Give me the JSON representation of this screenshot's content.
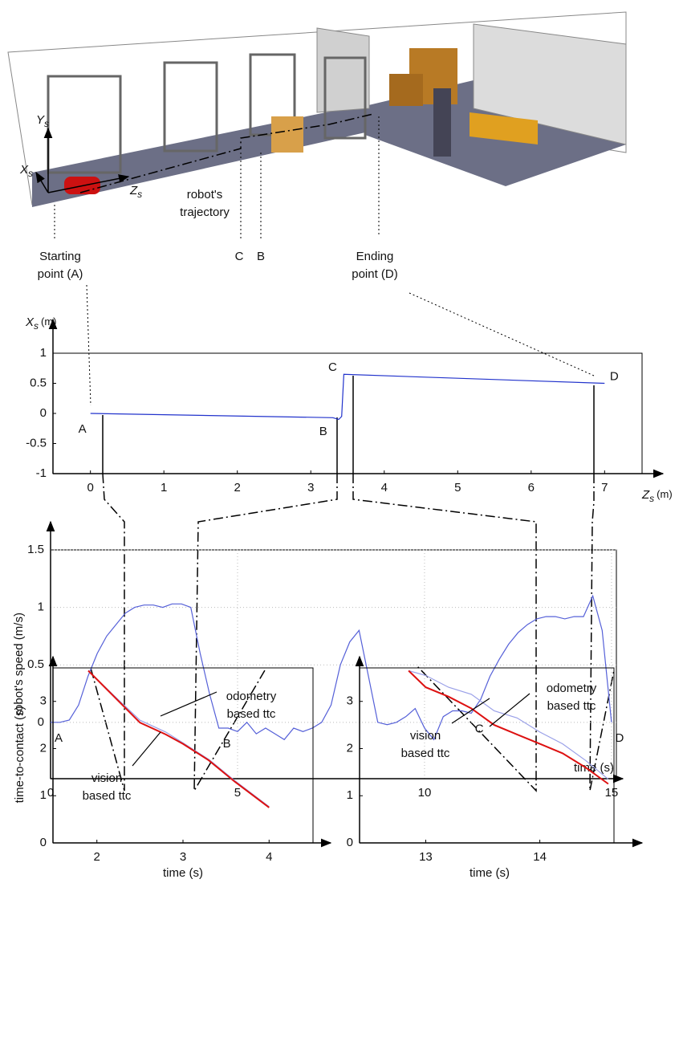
{
  "scene": {
    "axes": [
      {
        "main": "Y",
        "sub": "s"
      },
      {
        "main": "X",
        "sub": "s"
      },
      {
        "main": "Z",
        "sub": "s"
      }
    ],
    "trajectory_label": [
      "robot's",
      "trajectory"
    ],
    "start_label": [
      "Starting",
      "point (A)"
    ],
    "c_label": "C",
    "b_label": "B",
    "end_label": [
      "Ending",
      "point (D)"
    ]
  },
  "chart_data": [
    {
      "type": "line",
      "xlabel": "Z",
      "xlabel_sub": "s",
      "xlabel_unit": "(m)",
      "ylabel": "X",
      "ylabel_sub": "s",
      "ylabel_unit": "(m)",
      "xlim": [
        -0.51,
        7.51
      ],
      "ylim": [
        -1,
        1
      ],
      "xticks": [
        0,
        1,
        2,
        3,
        4,
        5,
        6,
        7
      ],
      "yticks": [
        -1,
        -0.5,
        0,
        0.5,
        1
      ],
      "grid": false,
      "series": [
        {
          "color": "#2233cc",
          "x": [
            0,
            3.3,
            3.38,
            3.42,
            3.45,
            7.0
          ],
          "values": [
            0,
            -0.07,
            -0.1,
            -0.05,
            0.65,
            0.5
          ],
          "point_labels": [
            "A",
            "B",
            null,
            null,
            "C",
            "D"
          ]
        }
      ]
    },
    {
      "type": "line",
      "xlabel": "time (s)",
      "ylabel": "robot's speed (m/s)",
      "xlim": [
        0,
        15.13
      ],
      "ylim": [
        -0.49,
        1.5
      ],
      "xticks": [
        0,
        5,
        10,
        15
      ],
      "yticks": [
        0,
        0.5,
        1,
        1.5
      ],
      "grid": true,
      "series": [
        {
          "color": "#5560d8",
          "x": [
            0,
            0.25,
            0.5,
            0.75,
            1,
            1.25,
            1.5,
            1.75,
            2,
            2.25,
            2.5,
            2.75,
            3,
            3.25,
            3.5,
            3.75,
            4,
            4.25,
            4.5,
            4.75,
            5,
            5.25,
            5.5,
            5.75,
            6,
            6.25,
            6.5,
            6.75,
            7,
            7.25,
            7.5,
            7.75,
            8,
            8.25,
            8.5,
            8.75,
            9,
            9.25,
            9.5,
            9.75,
            10,
            10.25,
            10.5,
            10.75,
            11,
            11.25,
            11.5,
            11.75,
            12,
            12.25,
            12.5,
            12.75,
            13,
            13.25,
            13.5,
            13.75,
            14,
            14.25,
            14.5,
            14.75,
            15
          ],
          "values": [
            0,
            0,
            0.02,
            0.15,
            0.4,
            0.6,
            0.75,
            0.85,
            0.95,
            1.0,
            1.02,
            1.02,
            1.0,
            1.03,
            1.03,
            1.0,
            0.6,
            0.25,
            -0.05,
            -0.05,
            -0.08,
            0.0,
            -0.1,
            -0.05,
            -0.1,
            -0.15,
            -0.05,
            -0.08,
            -0.05,
            0.0,
            0.15,
            0.5,
            0.7,
            0.8,
            0.4,
            0.0,
            -0.02,
            0.0,
            0.05,
            0.12,
            -0.05,
            -0.15,
            0.05,
            0.1,
            0.1,
            0.08,
            0.2,
            0.4,
            0.55,
            0.68,
            0.78,
            0.85,
            0.9,
            0.92,
            0.92,
            0.9,
            0.92,
            0.92,
            1.1,
            0.8,
            0.0
          ],
          "point_labels": [
            "A",
            null,
            null,
            null,
            null,
            null,
            null,
            null,
            null,
            null,
            null,
            null,
            null,
            null,
            null,
            null,
            null,
            null,
            "B",
            null,
            null,
            null,
            null,
            null,
            null,
            null,
            null,
            null,
            null,
            null,
            null,
            null,
            null,
            null,
            null,
            null,
            null,
            null,
            null,
            null,
            null,
            null,
            null,
            null,
            null,
            "C",
            null,
            null,
            null,
            null,
            null,
            null,
            null,
            null,
            null,
            null,
            null,
            null,
            null,
            null,
            "D"
          ]
        }
      ]
    },
    {
      "type": "line",
      "xlabel": "time (s)",
      "ylabel": "time-to-contact (s)",
      "xlim": [
        1.49,
        4.51
      ],
      "ylim": [
        0,
        3.71
      ],
      "xticks": [
        2,
        3,
        4
      ],
      "yticks": [
        0,
        1,
        2,
        3
      ],
      "grid": false,
      "series": [
        {
          "color": "#9aa0e8",
          "x": [
            1.9,
            2.2,
            2.5,
            2.8,
            3.0,
            3.3,
            3.6,
            4.0
          ],
          "values": [
            3.65,
            3.12,
            2.6,
            2.35,
            2.12,
            1.77,
            1.32,
            0.77
          ]
        },
        {
          "color": "#dd1111",
          "x": [
            1.9,
            2.2,
            2.5,
            2.8,
            3.0,
            3.3,
            3.6,
            4.0
          ],
          "values": [
            3.65,
            3.1,
            2.55,
            2.3,
            2.1,
            1.75,
            1.3,
            0.75
          ]
        }
      ],
      "annotations": [
        {
          "lines": [
            "odometry",
            "based ttc"
          ]
        },
        {
          "lines": [
            "vision",
            "based ttc"
          ]
        }
      ]
    },
    {
      "type": "line",
      "xlabel": "time (s)",
      "xlim": [
        12.42,
        14.65
      ],
      "ylim": [
        0,
        3.71
      ],
      "xticks": [
        13,
        14
      ],
      "yticks": [
        0,
        1,
        2,
        3
      ],
      "grid": false,
      "series": [
        {
          "color": "#9aa0e8",
          "x": [
            12.85,
            13.0,
            13.2,
            13.4,
            13.6,
            13.8,
            14.0,
            14.2,
            14.4,
            14.6
          ],
          "values": [
            3.65,
            3.55,
            3.3,
            3.15,
            2.8,
            2.65,
            2.35,
            2.1,
            1.75,
            1.35
          ]
        },
        {
          "color": "#dd1111",
          "x": [
            12.85,
            13.0,
            13.2,
            13.4,
            13.6,
            13.8,
            14.0,
            14.2,
            14.4,
            14.6
          ],
          "values": [
            3.65,
            3.3,
            3.1,
            2.85,
            2.5,
            2.3,
            2.1,
            1.9,
            1.6,
            1.25
          ]
        }
      ],
      "annotations": [
        {
          "lines": [
            "odometry",
            "based ttc"
          ]
        },
        {
          "lines": [
            "vision",
            "based ttc"
          ]
        }
      ]
    }
  ]
}
